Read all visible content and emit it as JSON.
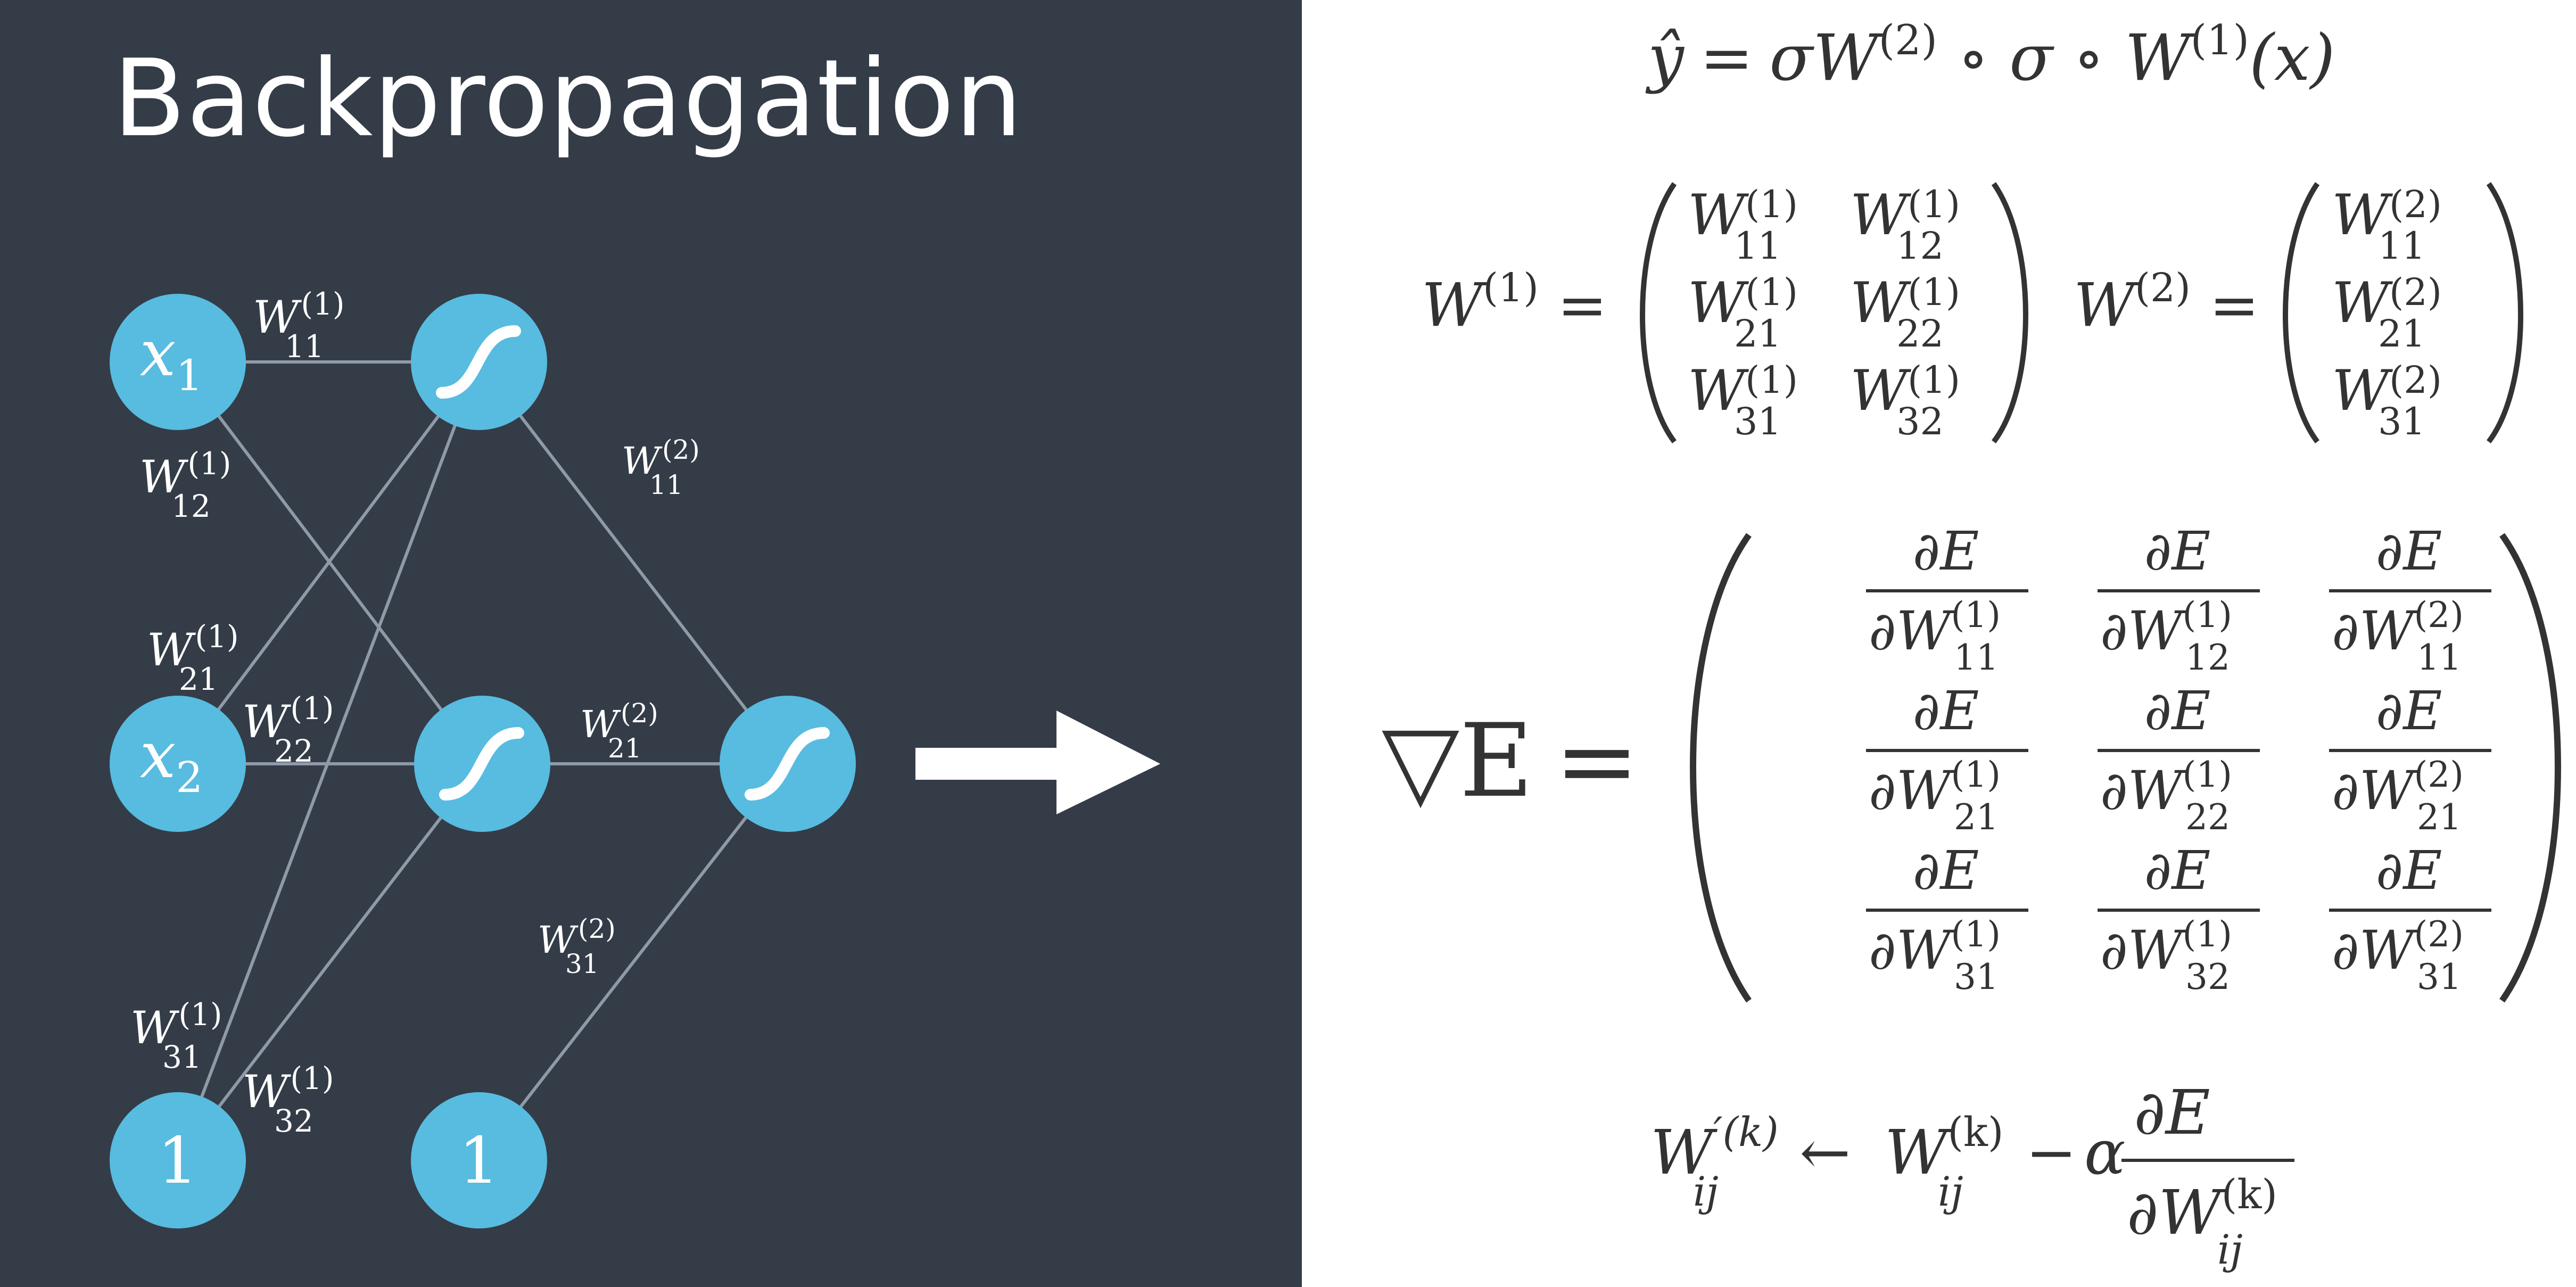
{
  "title": "Backpropagation",
  "colors": {
    "left_bg": "#343c48",
    "node": "#57bcdf",
    "edge": "#8f9aa8",
    "math": "#333333"
  },
  "network": {
    "inputs": [
      {
        "sym": "x",
        "sub": "1"
      },
      {
        "sym": "x",
        "sub": "2"
      },
      {
        "label": "1"
      }
    ],
    "hidden_bias": "1",
    "weight_labels": [
      {
        "base": "W",
        "sup": "(1)",
        "sub": "11"
      },
      {
        "base": "W",
        "sup": "(1)",
        "sub": "12"
      },
      {
        "base": "W",
        "sup": "(1)",
        "sub": "21"
      },
      {
        "base": "W",
        "sup": "(1)",
        "sub": "22"
      },
      {
        "base": "W",
        "sup": "(1)",
        "sub": "31"
      },
      {
        "base": "W",
        "sup": "(1)",
        "sub": "32"
      },
      {
        "base": "W",
        "sup": "(2)",
        "sub": "11"
      },
      {
        "base": "W",
        "sup": "(2)",
        "sub": "21"
      },
      {
        "base": "W",
        "sup": "(2)",
        "sub": "31"
      }
    ],
    "arrow_icon": "right-arrow-icon",
    "sigmoid_icon": "sigmoid-icon"
  },
  "equations": {
    "yhat": {
      "lhs": "ŷ",
      "eq": "=",
      "parts": [
        "σW",
        "(2)",
        " ∘ σ ∘ W",
        "(1)",
        "(x)"
      ]
    },
    "w1": {
      "lhs": "W",
      "lhs_sup": "(1)",
      "eq": "=",
      "rows": [
        [
          "11",
          "12"
        ],
        [
          "21",
          "22"
        ],
        [
          "31",
          "32"
        ]
      ],
      "entry_sup": "(1)"
    },
    "w2": {
      "lhs": "W",
      "lhs_sup": "(2)",
      "eq": "=",
      "rows": [
        "11",
        "21",
        "31"
      ],
      "entry_sup": "(2)"
    },
    "grad": {
      "lhs": "▽E",
      "eq": "=",
      "numerator": "∂E",
      "den_prefix": "∂W",
      "rows": [
        [
          {
            "sub": "11",
            "sup": "(1)"
          },
          {
            "sub": "12",
            "sup": "(1)"
          },
          {
            "sub": "11",
            "sup": "(2)"
          }
        ],
        [
          {
            "sub": "21",
            "sup": "(1)"
          },
          {
            "sub": "22",
            "sup": "(1)"
          },
          {
            "sub": "21",
            "sup": "(2)"
          }
        ],
        [
          {
            "sub": "31",
            "sup": "(1)"
          },
          {
            "sub": "32",
            "sup": "(1)"
          },
          {
            "sub": "31",
            "sup": "(2)"
          }
        ]
      ]
    },
    "update": {
      "lhs": "W",
      "lhs_sup": "′(k)",
      "lhs_sub": "ij",
      "arrow": "←",
      "rhs": "W",
      "rhs_sup": "(k)",
      "rhs_sub": "ij",
      "minus": "−",
      "alpha": "α",
      "numerator": "∂E",
      "den": "∂W",
      "den_sup": "(k)",
      "den_sub": "ij"
    }
  }
}
